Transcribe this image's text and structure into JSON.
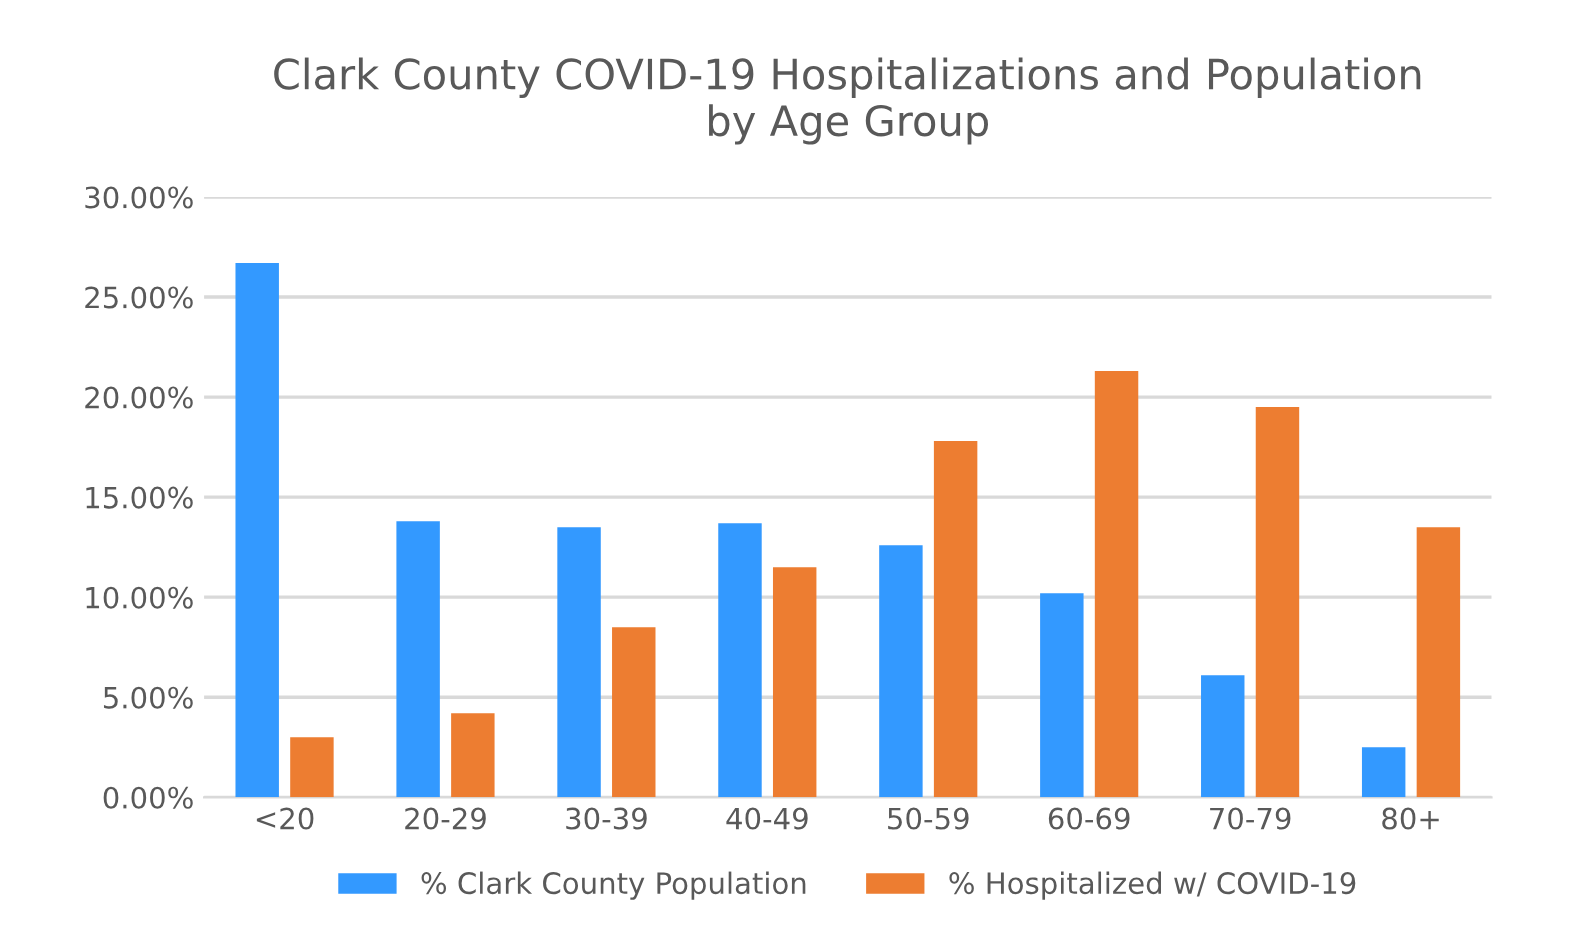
{
  "chart_data": {
    "type": "bar",
    "title": "Clark County COVID-19 Hospitalizations and Population\nby Age Group",
    "categories": [
      "<20",
      "20-29",
      "30-39",
      "40-49",
      "50-59",
      "60-69",
      "70-79",
      "80+"
    ],
    "series": [
      {
        "name": "% Clark County Population",
        "color": "#3399ff",
        "values": [
          26.7,
          13.8,
          13.5,
          13.7,
          12.6,
          10.2,
          6.1,
          2.5
        ]
      },
      {
        "name": "% Hospitalized w/ COVID-19",
        "color": "#ed7d31",
        "values": [
          3.0,
          4.2,
          8.5,
          11.5,
          17.8,
          21.3,
          19.5,
          13.5
        ]
      }
    ],
    "ylim": [
      0,
      30
    ],
    "yticks": [
      {
        "value": 0,
        "label": "0.00%"
      },
      {
        "value": 5,
        "label": "5.00%"
      },
      {
        "value": 10,
        "label": "10.00%"
      },
      {
        "value": 15,
        "label": "15.00%"
      },
      {
        "value": 20,
        "label": "20.00%"
      },
      {
        "value": 25,
        "label": "25.00%"
      },
      {
        "value": 30,
        "label": "30.00%"
      }
    ],
    "grid": "y",
    "legend": "bottom"
  }
}
